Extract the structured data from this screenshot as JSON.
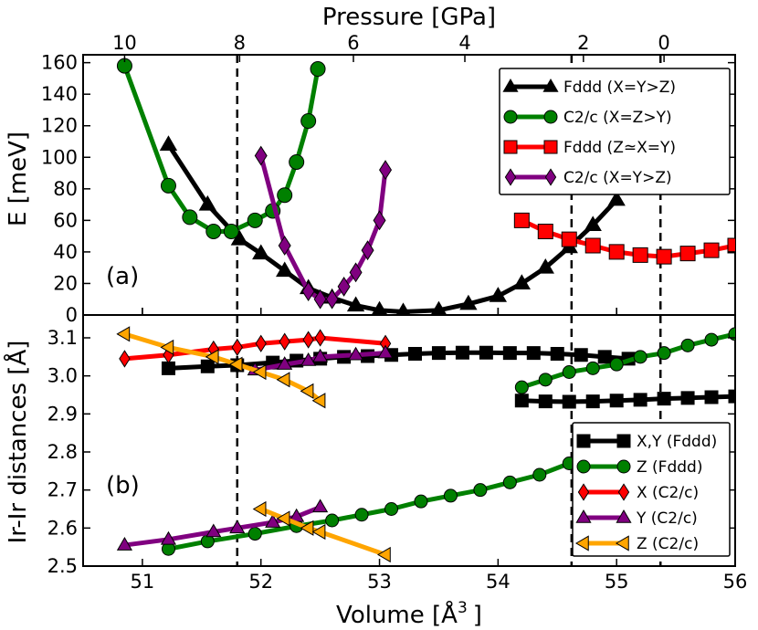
{
  "chart_data": {
    "type": "line",
    "top_axis": {
      "label": "Pressure [GPa]",
      "ticks": [
        {
          "label": "10",
          "volume": 50.85
        },
        {
          "label": "8",
          "volume": 51.82
        },
        {
          "label": "6",
          "volume": 52.78
        },
        {
          "label": "4",
          "volume": 53.72
        },
        {
          "label": "2",
          "volume": 54.72
        },
        {
          "label": "0",
          "volume": 55.4
        }
      ]
    },
    "xlabel": "Volume [Å",
    "xlabel_sup": "3",
    "xlabel_end": "]",
    "xlim": [
      50.5,
      56
    ],
    "xticks": [
      "51",
      "52",
      "53",
      "54",
      "55",
      "56"
    ],
    "xtick_values": [
      51,
      52,
      53,
      54,
      55,
      56
    ],
    "vlines": [
      51.8,
      54.62,
      55.37
    ],
    "panels": [
      {
        "tag": "(a)",
        "ylabel": "E [meV]",
        "ylim": [
          0,
          165
        ],
        "yticks": [
          "0",
          "20",
          "40",
          "60",
          "80",
          "100",
          "120",
          "140",
          "160"
        ],
        "ytick_values": [
          0,
          20,
          40,
          60,
          80,
          100,
          120,
          140,
          160
        ],
        "legend_position": "top-right",
        "series": [
          {
            "name": "Fddd (X=Y>Z)",
            "color": "#000000",
            "marker": "triangle-up",
            "x": [
              51.22,
              51.55,
              51.82,
              52.0,
              52.2,
              52.4,
              52.6,
              52.8,
              53.0,
              53.2,
              53.5,
              53.75,
              54.0,
              54.2,
              54.4,
              54.6,
              54.8,
              55.0
            ],
            "y": [
              108,
              70,
              48,
              39,
              28,
              17,
              11,
              6,
              3,
              2,
              3,
              7,
              12,
              20,
              30,
              43,
              57,
              73
            ]
          },
          {
            "name": "C2/c (X=Z>Y)",
            "color": "#008000",
            "marker": "circle",
            "x": [
              50.85,
              51.22,
              51.4,
              51.6,
              51.75,
              51.95,
              52.1,
              52.2,
              52.3,
              52.4,
              52.48
            ],
            "y": [
              158,
              82,
              62,
              53,
              53,
              60,
              66,
              76,
              97,
              123,
              156
            ]
          },
          {
            "name": "Fddd (Z≃X=Y)",
            "color": "#ff0000",
            "marker": "square",
            "x": [
              54.2,
              54.4,
              54.6,
              54.8,
              55.0,
              55.2,
              55.4,
              55.6,
              55.8,
              56.0
            ],
            "y": [
              60,
              53,
              48,
              44,
              40,
              38,
              37,
              39,
              41,
              44
            ]
          },
          {
            "name": "C2/c (X=Y>Z)",
            "color": "#800080",
            "marker": "diamond",
            "x": [
              52.0,
              52.2,
              52.4,
              52.5,
              52.6,
              52.7,
              52.8,
              52.9,
              53.0,
              53.05
            ],
            "y": [
              101,
              44,
              15,
              10,
              10,
              18,
              27,
              41,
              60,
              92
            ]
          }
        ]
      },
      {
        "tag": "(b)",
        "ylabel": "Ir-Ir distances [Å]",
        "ylim": [
          2.5,
          3.16
        ],
        "yticks": [
          "2.5",
          "2.6",
          "2.7",
          "2.8",
          "2.9",
          "3.0",
          "3.1"
        ],
        "ytick_values": [
          2.5,
          2.6,
          2.7,
          2.8,
          2.9,
          3.0,
          3.1
        ],
        "legend_position": "bottom-right",
        "series": [
          {
            "name": "X,Y (Fddd)",
            "color": "#000000",
            "marker": "square",
            "x": [
              51.22,
              51.55,
              51.8,
              52.1,
              52.3,
              52.5,
              52.7,
              52.9,
              53.1,
              53.3,
              53.5,
              53.7,
              53.9,
              54.1,
              54.3,
              54.5,
              54.7,
              54.9,
              55.1
            ],
            "y": [
              3.02,
              3.025,
              3.028,
              3.035,
              3.04,
              3.045,
              3.05,
              3.052,
              3.055,
              3.058,
              3.06,
              3.061,
              3.061,
              3.06,
              3.06,
              3.058,
              3.055,
              3.05,
              3.045
            ]
          },
          {
            "name": "X,Y (Fddd) lower branch",
            "legend": false,
            "color": "#000000",
            "marker": "square",
            "x": [
              54.2,
              54.4,
              54.6,
              54.8,
              55.0,
              55.2,
              55.4,
              55.6,
              55.8,
              56.0
            ],
            "y": [
              2.935,
              2.933,
              2.932,
              2.933,
              2.935,
              2.937,
              2.94,
              2.942,
              2.944,
              2.946
            ]
          },
          {
            "name": "Z (Fddd)",
            "color": "#008000",
            "marker": "circle",
            "x": [
              51.22,
              51.55,
              51.95,
              52.3,
              52.6,
              52.85,
              53.1,
              53.35,
              53.6,
              53.85,
              54.1,
              54.35,
              54.6
            ],
            "y": [
              2.545,
              2.565,
              2.585,
              2.605,
              2.62,
              2.635,
              2.65,
              2.67,
              2.685,
              2.7,
              2.72,
              2.74,
              2.77
            ]
          },
          {
            "name": "Z (Fddd) upper branch",
            "legend": false,
            "color": "#008000",
            "marker": "circle",
            "x": [
              54.2,
              54.4,
              54.6,
              54.8,
              55.0,
              55.2,
              55.4,
              55.6,
              55.8,
              56.0
            ],
            "y": [
              2.97,
              2.99,
              3.01,
              3.02,
              3.03,
              3.05,
              3.06,
              3.08,
              3.095,
              3.11
            ]
          },
          {
            "name": "X (C2/c)",
            "color": "#ff0000",
            "marker": "diamond",
            "x": [
              50.85,
              51.22,
              51.6,
              51.8,
              52.0,
              52.2,
              52.4,
              52.5,
              53.05
            ],
            "y": [
              3.045,
              3.055,
              3.07,
              3.075,
              3.085,
              3.09,
              3.095,
              3.1,
              3.085
            ]
          },
          {
            "name": "Y (C2/c)",
            "color": "#800080",
            "marker": "triangle-up",
            "x": [
              50.85,
              51.22,
              51.6,
              51.8,
              52.1,
              52.3,
              52.5
            ],
            "y": [
              2.555,
              2.57,
              2.59,
              2.6,
              2.615,
              2.63,
              2.655
            ]
          },
          {
            "name": "Y (C2/c) upper branch",
            "legend": false,
            "color": "#800080",
            "marker": "triangle-up",
            "x": [
              51.95,
              52.2,
              52.4,
              52.5,
              52.8,
              53.05
            ],
            "y": [
              3.015,
              3.03,
              3.04,
              3.05,
              3.055,
              3.06
            ]
          },
          {
            "name": "Z (C2/c)",
            "color": "#ffa500",
            "marker": "triangle-left",
            "x": [
              50.85,
              51.22,
              51.6,
              51.8,
              52.0,
              52.2,
              52.4,
              52.5
            ],
            "y": [
              3.11,
              3.075,
              3.05,
              3.03,
              3.01,
              2.99,
              2.96,
              2.935
            ]
          },
          {
            "name": "Z (C2/c) lower branch",
            "legend": false,
            "color": "#ffa500",
            "marker": "triangle-left",
            "x": [
              52.0,
              52.2,
              52.4,
              52.5,
              53.05
            ],
            "y": [
              2.65,
              2.625,
              2.6,
              2.59,
              2.53
            ]
          }
        ]
      }
    ]
  }
}
